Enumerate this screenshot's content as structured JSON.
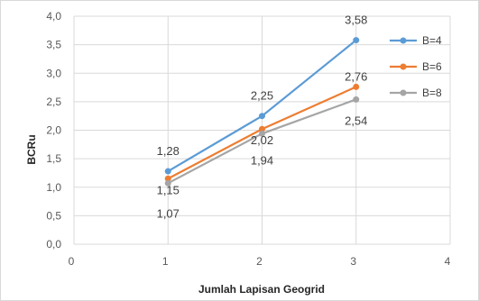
{
  "chart_data": {
    "type": "line",
    "title": "",
    "xlabel": "Jumlah Lapisan Geogrid",
    "ylabel": "BCRu",
    "xlim": [
      0,
      4
    ],
    "ylim": [
      0,
      4
    ],
    "x_ticks": [
      "0",
      "1",
      "2",
      "3",
      "4"
    ],
    "y_ticks": [
      "0,0",
      "0,5",
      "1,0",
      "1,5",
      "2,0",
      "2,5",
      "3,0",
      "3,5",
      "4,0"
    ],
    "grid": "vertical and horizontal gridlines",
    "legend_position": "right",
    "x": [
      1,
      2,
      3
    ],
    "series": [
      {
        "name": "B=4",
        "color": "#5b9bd5",
        "values": [
          1.28,
          2.25,
          3.58
        ],
        "labels": [
          "1,28",
          "2,25",
          "3,58"
        ]
      },
      {
        "name": "B=6",
        "color": "#ed7d31",
        "values": [
          1.15,
          2.02,
          2.76
        ],
        "labels": [
          "1,15",
          "2,02",
          "2,76"
        ]
      },
      {
        "name": "B=8",
        "color": "#a5a5a5",
        "values": [
          1.07,
          1.94,
          2.54
        ],
        "labels": [
          "1,07",
          "1,94",
          "2,54"
        ]
      }
    ]
  }
}
